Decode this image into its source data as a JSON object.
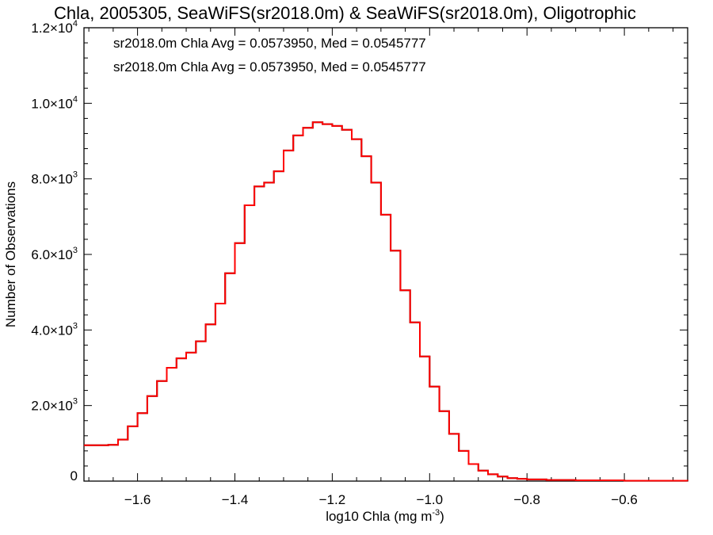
{
  "chart_data": {
    "type": "histogram",
    "title": "Chla, 2005305, SeaWiFS(sr2018.0m) & SeaWiFS(sr2018.0m), Oligotrophic",
    "xlabel": "log10 Chla (mg m",
    "xlabel_sup": "-3",
    "xlabel_close": ")",
    "ylabel": "Number of Observations",
    "xlim": [
      -1.71,
      -0.47
    ],
    "ylim": [
      0,
      12000
    ],
    "xticks": [
      -1.6,
      -1.4,
      -1.2,
      -1.0,
      -0.8,
      -0.6
    ],
    "xtick_labels": [
      "−1.6",
      "−1.4",
      "−1.2",
      "−1.0",
      "−0.8",
      "−0.6"
    ],
    "yticks": [
      {
        "value": 0,
        "mant": "0",
        "exp": ""
      },
      {
        "value": 2000,
        "mant": "2.0×10",
        "exp": "3"
      },
      {
        "value": 4000,
        "mant": "4.0×10",
        "exp": "3"
      },
      {
        "value": 6000,
        "mant": "6.0×10",
        "exp": "3"
      },
      {
        "value": 8000,
        "mant": "8.0×10",
        "exp": "3"
      },
      {
        "value": 10000,
        "mant": "1.0×10",
        "exp": "4"
      },
      {
        "value": 12000,
        "mant": "1.2×10",
        "exp": "4"
      }
    ],
    "legend": [
      {
        "text": "sr2018.0m Chla Avg = 0.0573950, Med = 0.0545777",
        "color": "#000000"
      },
      {
        "text": "sr2018.0m Chla Avg = 0.0573950, Med = 0.0545777",
        "color": "#ff0000"
      }
    ],
    "series": [
      {
        "color": "#000000",
        "points": [
          [
            -1.71,
            950
          ],
          [
            -1.66,
            960
          ],
          [
            -1.64,
            1100
          ],
          [
            -1.62,
            1450
          ],
          [
            -1.6,
            1800
          ],
          [
            -1.58,
            2250
          ],
          [
            -1.56,
            2650
          ],
          [
            -1.54,
            3000
          ],
          [
            -1.52,
            3250
          ],
          [
            -1.5,
            3400
          ],
          [
            -1.48,
            3700
          ],
          [
            -1.46,
            4150
          ],
          [
            -1.44,
            4700
          ],
          [
            -1.42,
            5500
          ],
          [
            -1.4,
            6300
          ],
          [
            -1.38,
            7300
          ],
          [
            -1.36,
            7800
          ],
          [
            -1.34,
            7900
          ],
          [
            -1.32,
            8200
          ],
          [
            -1.3,
            8750
          ],
          [
            -1.28,
            9150
          ],
          [
            -1.26,
            9350
          ],
          [
            -1.24,
            9500
          ],
          [
            -1.22,
            9450
          ],
          [
            -1.2,
            9400
          ],
          [
            -1.18,
            9300
          ],
          [
            -1.16,
            9050
          ],
          [
            -1.14,
            8600
          ],
          [
            -1.12,
            7900
          ],
          [
            -1.1,
            7050
          ],
          [
            -1.08,
            6100
          ],
          [
            -1.06,
            5050
          ],
          [
            -1.04,
            4200
          ],
          [
            -1.02,
            3300
          ],
          [
            -1.0,
            2500
          ],
          [
            -0.98,
            1850
          ],
          [
            -0.96,
            1250
          ],
          [
            -0.94,
            800
          ],
          [
            -0.92,
            450
          ],
          [
            -0.9,
            280
          ],
          [
            -0.88,
            180
          ],
          [
            -0.86,
            120
          ],
          [
            -0.84,
            80
          ],
          [
            -0.82,
            60
          ],
          [
            -0.8,
            45
          ],
          [
            -0.76,
            30
          ],
          [
            -0.7,
            20
          ],
          [
            -0.6,
            10
          ],
          [
            -0.47,
            5
          ]
        ]
      },
      {
        "color": "#ff0000",
        "points": [
          [
            -1.71,
            950
          ],
          [
            -1.66,
            960
          ],
          [
            -1.64,
            1100
          ],
          [
            -1.62,
            1450
          ],
          [
            -1.6,
            1800
          ],
          [
            -1.58,
            2250
          ],
          [
            -1.56,
            2650
          ],
          [
            -1.54,
            3000
          ],
          [
            -1.52,
            3250
          ],
          [
            -1.5,
            3400
          ],
          [
            -1.48,
            3700
          ],
          [
            -1.46,
            4150
          ],
          [
            -1.44,
            4700
          ],
          [
            -1.42,
            5500
          ],
          [
            -1.4,
            6300
          ],
          [
            -1.38,
            7300
          ],
          [
            -1.36,
            7800
          ],
          [
            -1.34,
            7900
          ],
          [
            -1.32,
            8200
          ],
          [
            -1.3,
            8750
          ],
          [
            -1.28,
            9150
          ],
          [
            -1.26,
            9350
          ],
          [
            -1.24,
            9500
          ],
          [
            -1.22,
            9450
          ],
          [
            -1.2,
            9400
          ],
          [
            -1.18,
            9300
          ],
          [
            -1.16,
            9050
          ],
          [
            -1.14,
            8600
          ],
          [
            -1.12,
            7900
          ],
          [
            -1.1,
            7050
          ],
          [
            -1.08,
            6100
          ],
          [
            -1.06,
            5050
          ],
          [
            -1.04,
            4200
          ],
          [
            -1.02,
            3300
          ],
          [
            -1.0,
            2500
          ],
          [
            -0.98,
            1850
          ],
          [
            -0.96,
            1250
          ],
          [
            -0.94,
            800
          ],
          [
            -0.92,
            450
          ],
          [
            -0.9,
            280
          ],
          [
            -0.88,
            180
          ],
          [
            -0.86,
            120
          ],
          [
            -0.84,
            80
          ],
          [
            -0.82,
            60
          ],
          [
            -0.8,
            45
          ],
          [
            -0.76,
            30
          ],
          [
            -0.7,
            20
          ],
          [
            -0.6,
            10
          ],
          [
            -0.47,
            5
          ]
        ]
      }
    ]
  }
}
